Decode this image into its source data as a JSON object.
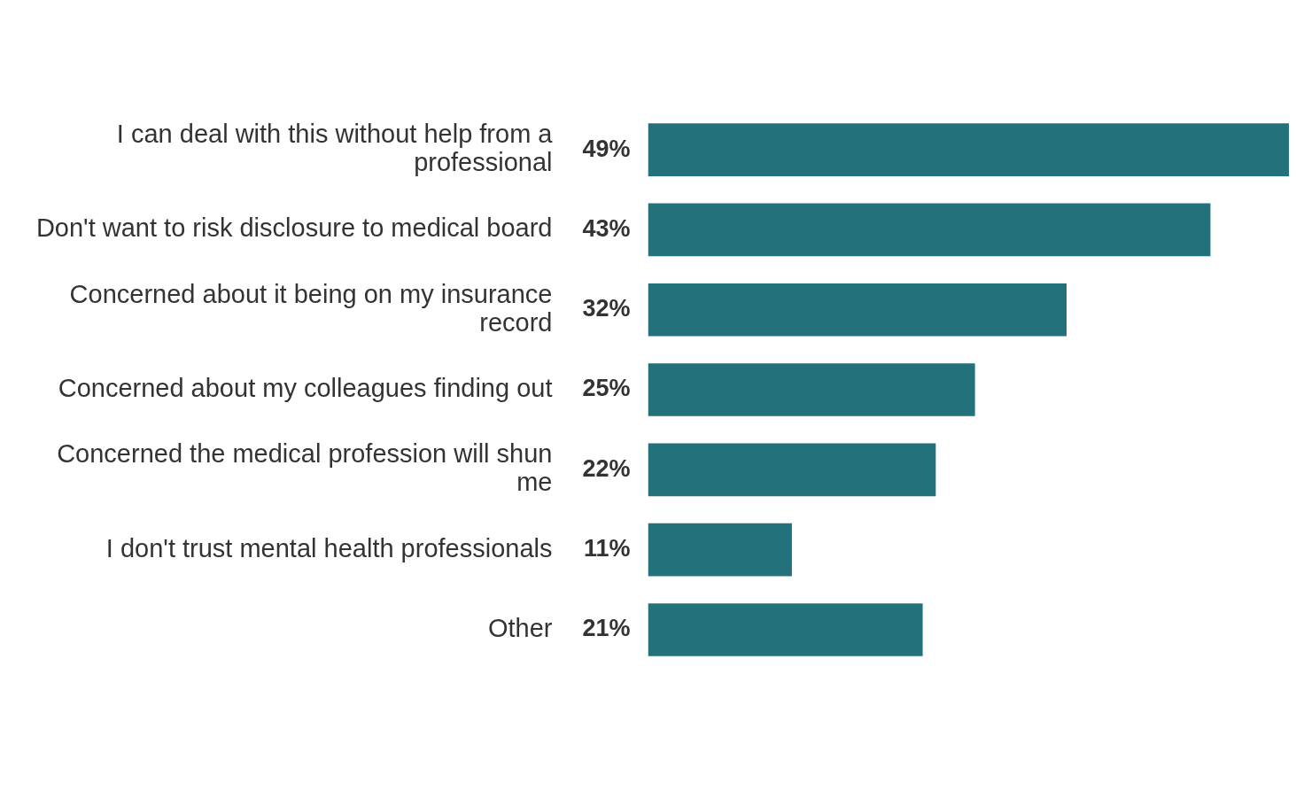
{
  "chart_data": {
    "type": "bar",
    "orientation": "horizontal",
    "categories": [
      "I can deal with this without help from a professional",
      "Don't want to risk disclosure to medical board",
      "Concerned about it being on my insurance record",
      "Concerned about my colleagues finding out",
      "Concerned the medical profession will shun me",
      "I don't trust mental health professionals",
      "Other"
    ],
    "values": [
      49,
      43,
      32,
      25,
      22,
      11,
      21
    ],
    "value_labels": [
      "49%",
      "43%",
      "32%",
      "25%",
      "22%",
      "11%",
      "21%"
    ],
    "color": "#22717b"
  }
}
